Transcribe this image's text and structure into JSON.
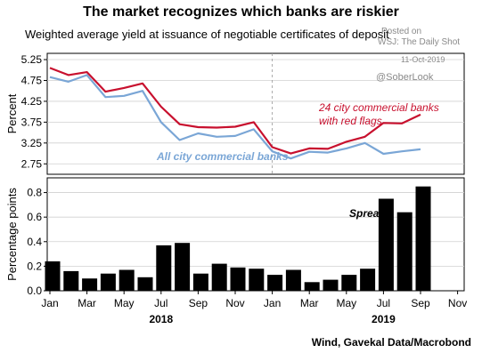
{
  "header": {
    "title": "The market recognizes which banks are riskier",
    "subtitle": "Weighted average yield at issuance of negotiable certificates of deposit"
  },
  "watermark": {
    "line1": "Posted on",
    "line2": "WSJ: The Daily Shot",
    "date": "11-Oct-2019",
    "handle": "@SoberLook"
  },
  "footer": {
    "source": "Wind, Gavekal Data/Macrobond"
  },
  "colors": {
    "red": "#c8102e",
    "blue": "#7aa6d6",
    "bar": "#000000"
  },
  "chart_data": [
    {
      "type": "line",
      "ylabel": "Percent",
      "ylim": [
        2.5,
        5.4
      ],
      "yticks": [
        "2.75",
        "3.25",
        "3.75",
        "4.25",
        "4.75",
        "5.25"
      ],
      "grid": true,
      "x": [
        "2018-01",
        "2018-02",
        "2018-03",
        "2018-04",
        "2018-05",
        "2018-06",
        "2018-07",
        "2018-08",
        "2018-09",
        "2018-10",
        "2018-11",
        "2018-12",
        "2019-01",
        "2019-02",
        "2019-03",
        "2019-04",
        "2019-05",
        "2019-06",
        "2019-07",
        "2019-08",
        "2019-09"
      ],
      "series": [
        {
          "name": "24 city commercial banks with red flags",
          "label_line1": "24 city commercial banks",
          "label_line2": "with red flags",
          "color": "#c8102e",
          "values": [
            5.05,
            4.88,
            4.95,
            4.48,
            4.57,
            4.68,
            4.12,
            3.7,
            3.63,
            3.62,
            3.64,
            3.75,
            3.15,
            3.0,
            3.12,
            3.11,
            3.28,
            3.4,
            3.73,
            3.72,
            3.93
          ]
        },
        {
          "name": "All city commercial banks",
          "label_line1": "All city commercial banks",
          "color": "#7aa6d6",
          "values": [
            4.83,
            4.72,
            4.88,
            4.35,
            4.38,
            4.5,
            3.75,
            3.32,
            3.48,
            3.4,
            3.42,
            3.58,
            3.05,
            2.88,
            3.04,
            3.02,
            3.12,
            3.25,
            2.99,
            3.05,
            3.1
          ]
        }
      ]
    },
    {
      "type": "bar",
      "ylabel": "Percentage points",
      "ylim": [
        0,
        0.92
      ],
      "yticks": [
        "0.0",
        "0.2",
        "0.4",
        "0.6",
        "0.8"
      ],
      "series": [
        {
          "name": "Spread",
          "color": "#000000",
          "values": [
            0.24,
            0.16,
            0.1,
            0.14,
            0.17,
            0.11,
            0.37,
            0.39,
            0.14,
            0.22,
            0.19,
            0.18,
            0.13,
            0.17,
            0.07,
            0.09,
            0.13,
            0.18,
            0.75,
            0.64,
            0.85
          ]
        }
      ]
    }
  ],
  "xaxis": {
    "month_labels": [
      "Jan",
      "Mar",
      "May",
      "Jul",
      "Sep",
      "Nov",
      "Jan",
      "Mar",
      "May",
      "Jul",
      "Sep",
      "Nov"
    ],
    "year_labels": [
      "2018",
      "2019"
    ]
  }
}
